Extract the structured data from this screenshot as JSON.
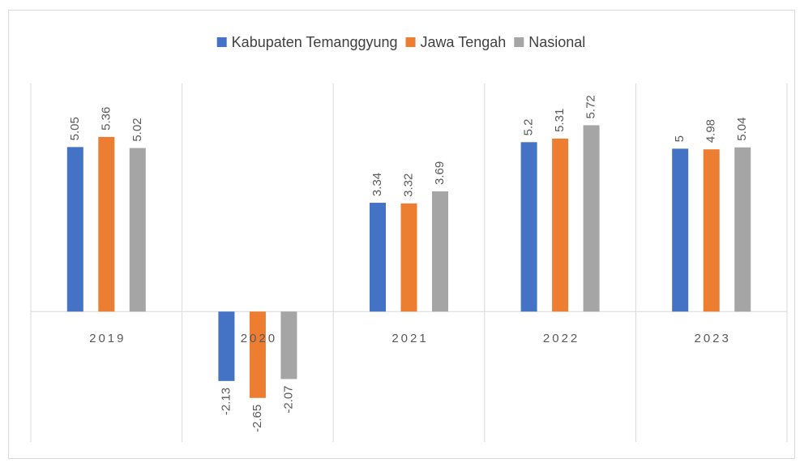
{
  "chart_data": {
    "type": "bar",
    "categories": [
      "2019",
      "2020",
      "2021",
      "2022",
      "2023"
    ],
    "series": [
      {
        "name": "Kabupaten Temanggyung",
        "color": "#4472c4",
        "values": [
          5.05,
          -2.13,
          3.34,
          5.2,
          5
        ]
      },
      {
        "name": "Jawa Tengah",
        "color": "#ed7d31",
        "values": [
          5.36,
          -2.65,
          3.32,
          5.31,
          4.98
        ]
      },
      {
        "name": "Nasional",
        "color": "#a5a5a5",
        "values": [
          5.02,
          -2.07,
          3.69,
          5.72,
          5.04
        ]
      }
    ],
    "ylim": [
      -4,
      7
    ],
    "legend": "top"
  }
}
